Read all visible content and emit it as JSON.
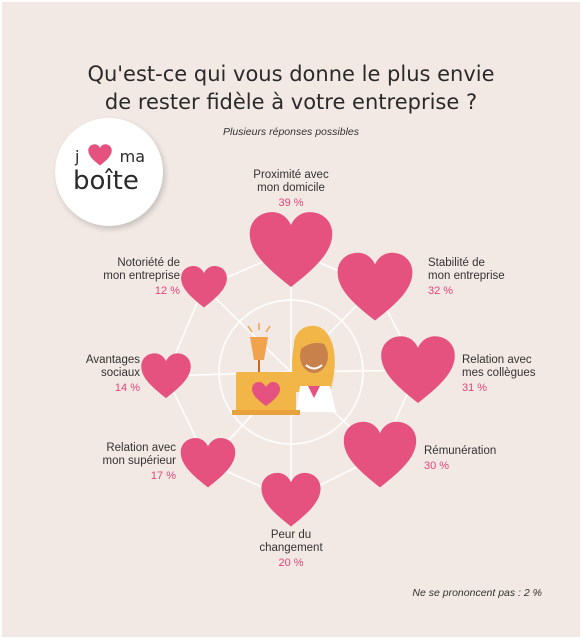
{
  "title_line1": "Qu'est-ce qui vous donne le plus envie",
  "title_line2": "de rester fidèle à votre entreprise ?",
  "subtitle": "Plusieurs réponses possibles",
  "footnote": "Ne se prononcent pas : 2 %",
  "logo": {
    "line1_left": "j",
    "line1_right": "ma",
    "line2": "boîte",
    "heart_icon": "heart-icon"
  },
  "colors": {
    "heart": "#e5527f",
    "percent": "#e0457b",
    "background": "#f2e9e4"
  },
  "chart_data": {
    "type": "bubble-hearts",
    "unit": "%",
    "series": [
      {
        "label_lines": [
          "Proximité avec",
          "mon domicile"
        ],
        "value": 39,
        "value_text": "39 %"
      },
      {
        "label_lines": [
          "Stabilité de",
          "mon entreprise"
        ],
        "value": 32,
        "value_text": "32 %"
      },
      {
        "label_lines": [
          "Relation avec",
          "mes collègues"
        ],
        "value": 31,
        "value_text": "31 %"
      },
      {
        "label_lines": [
          "Rémunération"
        ],
        "value": 30,
        "value_text": "30 %"
      },
      {
        "label_lines": [
          "Peur du",
          "changement"
        ],
        "value": 20,
        "value_text": "20 %"
      },
      {
        "label_lines": [
          "Relation avec",
          "mon supérieur"
        ],
        "value": 17,
        "value_text": "17 %"
      },
      {
        "label_lines": [
          "Avantages",
          "sociaux"
        ],
        "value": 14,
        "value_text": "14 %"
      },
      {
        "label_lines": [
          "Notoriété de",
          "mon entreprise"
        ],
        "value": 12,
        "value_text": "12 %"
      }
    ]
  }
}
